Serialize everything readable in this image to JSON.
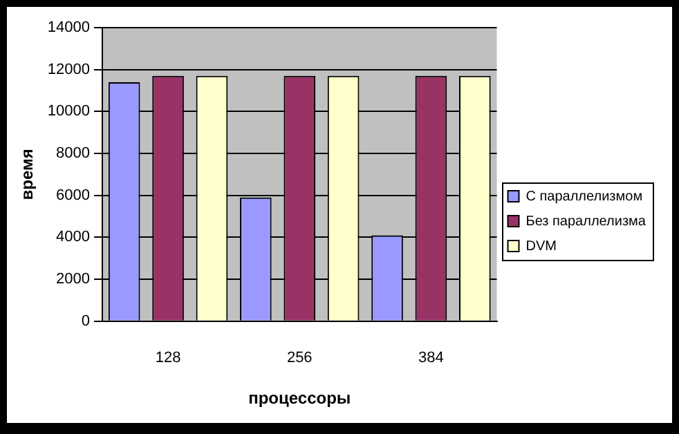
{
  "chart_data": {
    "type": "bar",
    "xlabel": "процессоры",
    "ylabel": "время",
    "categories": [
      "128",
      "256",
      "384"
    ],
    "series": [
      {
        "name": "С параллелизмом",
        "color": "#9999ff",
        "values": [
          11400,
          5900,
          4100
        ]
      },
      {
        "name": "Без параллелизма",
        "color": "#993366",
        "values": [
          11700,
          11700,
          11700
        ]
      },
      {
        "name": "DVM",
        "color": "#ffffcc",
        "values": [
          11700,
          11700,
          11700
        ]
      }
    ],
    "ylim": [
      0,
      14000
    ],
    "yticks": [
      0,
      2000,
      4000,
      6000,
      8000,
      10000,
      12000,
      14000
    ],
    "grid": "y",
    "legend": "right"
  }
}
